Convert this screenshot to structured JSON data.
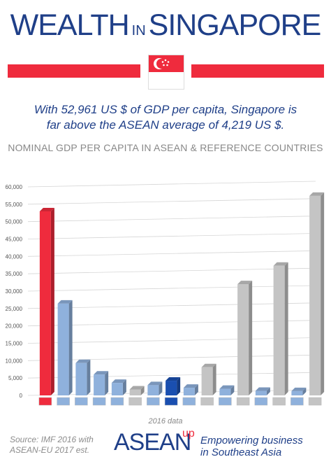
{
  "header": {
    "title_part1": "WEALTH",
    "title_part2": "IN",
    "title_part3": "SINGAPORE",
    "subtitle_line1": "With 52,961 US $ of GDP per capita, Singapore is",
    "subtitle_line2": "far above the ASEAN average of 4,219 US $."
  },
  "colors": {
    "title_blue": "#1f3f88",
    "singapore_red": "#ef2b3d",
    "asean_bar": "#8fb1dc",
    "asean_average_bar": "#1a4fb0",
    "reference_bar": "#c4c4c4"
  },
  "chart_data": {
    "type": "bar",
    "title": "NOMINAL GDP PER CAPITA IN ASEAN & REFERENCE COUNTRIES",
    "ylim": [
      0,
      60000
    ],
    "yticks": [
      "0",
      "5,000",
      "10,000",
      "15,000",
      "20,000",
      "25,000",
      "30,000",
      "35,000",
      "40,000",
      "45,000",
      "50,000",
      "55,000",
      "60,000"
    ],
    "grid": true,
    "categories": [
      "singapore-flag",
      "brunei-flag",
      "malaysia-flag",
      "thailand-flag",
      "indonesia-flag",
      "india-flag",
      "philippines-flag",
      "asean-emblem",
      "vietnam-flag",
      "china-flag",
      "laos-flag",
      "eu-flag",
      "myanmar-flag",
      "japan-flag",
      "cambodia-flag",
      "usa-flag"
    ],
    "values": [
      52961,
      26400,
      9300,
      6000,
      3600,
      1720,
      2950,
      4219,
      2200,
      8100,
      1900,
      32000,
      1300,
      37300,
      1230,
      57400
    ],
    "groups": [
      "singapore",
      "asean",
      "asean",
      "asean",
      "asean",
      "reference",
      "asean",
      "asean-average",
      "asean",
      "reference",
      "asean",
      "reference",
      "asean",
      "reference",
      "asean",
      "reference"
    ]
  },
  "footer": {
    "note": "2016 data",
    "source_line1": "Source: IMF 2016 with",
    "source_line2": "ASEAN-EU 2017 est.",
    "brand": "ASEAN",
    "brand_up": "up",
    "tagline_line1": "Empowering business",
    "tagline_line2": "in Southeast Asia"
  }
}
